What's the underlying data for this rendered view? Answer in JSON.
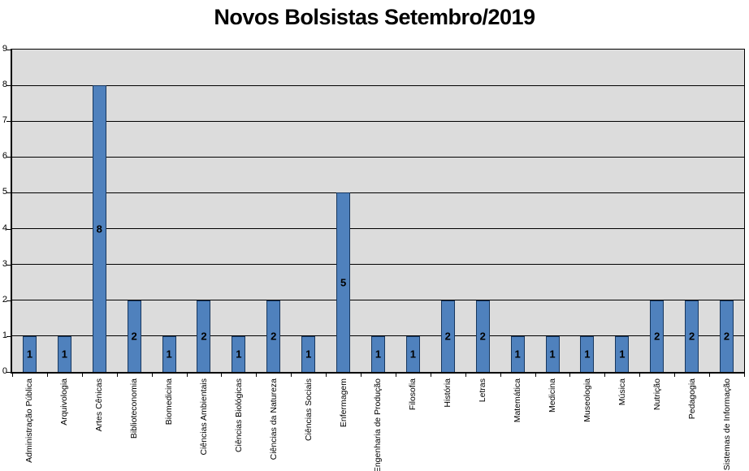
{
  "title": "Novos Bolsistas Setembro/2019",
  "chart_data": {
    "type": "bar",
    "title": "Novos Bolsistas Setembro/2019",
    "xlabel": "",
    "ylabel": "",
    "categories": [
      "Administração Pública",
      "Arquivologia",
      "Artes Cênicas",
      "Biblioteconomia",
      "Biomedicina",
      "Ciências Ambientais",
      "Ciências Biológicas",
      "Ciências da Natureza",
      "Ciências Sociais",
      "Enfermagem",
      "Engenharia de Produção",
      "Filosofia",
      "História",
      "Letras",
      "Matemática",
      "Medicina",
      "Museologia",
      "Música",
      "Nutrição",
      "Pedagogia",
      "Sistemas de Informação"
    ],
    "values": [
      1,
      1,
      8,
      2,
      1,
      2,
      1,
      2,
      1,
      5,
      1,
      1,
      2,
      2,
      1,
      1,
      1,
      1,
      2,
      2,
      2
    ],
    "ylim": [
      0,
      9
    ],
    "yticks": [
      0,
      1,
      2,
      3,
      4,
      5,
      6,
      7,
      8,
      9
    ],
    "grid": true,
    "legend_position": "none",
    "data_labels": "center",
    "colors": {
      "bar_fill": "#4F81BD",
      "bar_border": "#17375E",
      "plot_background": "#DCDCDC",
      "gridline": "#000000",
      "axis": "#000000",
      "text": "#000000"
    }
  }
}
